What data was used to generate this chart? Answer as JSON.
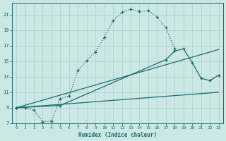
{
  "xlabel": "Humidex (Indice chaleur)",
  "background_color": "#cce8e6",
  "grid_color": "#aacfcc",
  "line_color": "#1a6b6b",
  "xlim": [
    -0.5,
    23.5
  ],
  "ylim": [
    7,
    22.5
  ],
  "yticks": [
    7,
    9,
    11,
    13,
    15,
    17,
    19,
    21
  ],
  "xticks": [
    0,
    1,
    2,
    3,
    4,
    5,
    6,
    7,
    8,
    9,
    10,
    11,
    12,
    13,
    14,
    15,
    16,
    17,
    18,
    19,
    20,
    21,
    22,
    23
  ],
  "curve1_x": [
    0,
    1,
    2,
    3,
    4,
    5,
    6,
    7,
    8,
    9,
    10,
    11,
    12,
    13,
    14,
    15,
    16,
    17,
    18
  ],
  "curve1_y": [
    9.0,
    9.0,
    8.7,
    7.2,
    7.3,
    10.2,
    10.5,
    13.8,
    15.1,
    16.2,
    18.1,
    20.2,
    21.3,
    21.7,
    21.4,
    21.5,
    20.7,
    19.3,
    16.6
  ],
  "curve2_x": [
    0,
    5,
    17,
    18,
    19,
    20,
    21,
    22,
    23
  ],
  "curve2_y": [
    9.0,
    9.3,
    15.2,
    16.3,
    16.6,
    14.8,
    12.8,
    12.5,
    13.2
  ],
  "curve3_x": [
    0,
    23
  ],
  "curve3_y": [
    9.0,
    16.5
  ],
  "curve4_x": [
    0,
    23
  ],
  "curve4_y": [
    9.0,
    11.0
  ]
}
